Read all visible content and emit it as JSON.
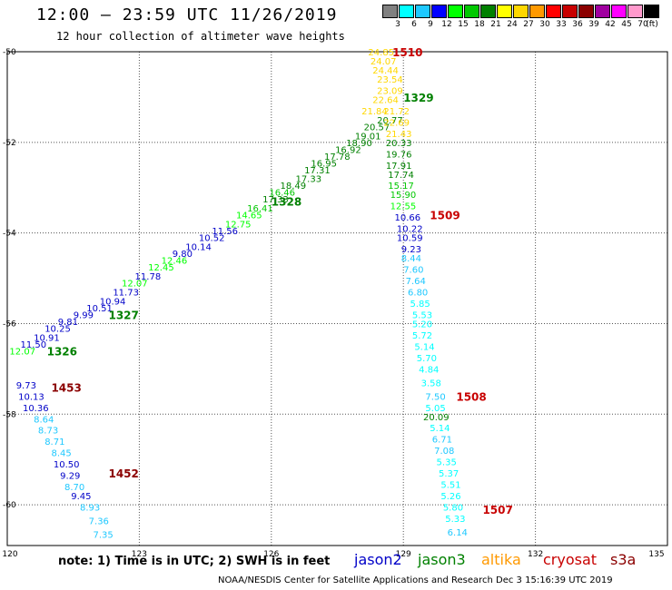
{
  "header": {
    "title": "12:00 – 23:59 UTC 11/26/2019",
    "subtitle": "12 hour collection of altimeter wave heights"
  },
  "legend": {
    "unit": "(ft)",
    "bins": [
      {
        "label": "3",
        "color": "#808080"
      },
      {
        "label": "6",
        "color": "#00ffff"
      },
      {
        "label": "9",
        "color": "#1ec8ff"
      },
      {
        "label": "12",
        "color": "#0000ff"
      },
      {
        "label": "15",
        "color": "#00ff00"
      },
      {
        "label": "18",
        "color": "#00c800"
      },
      {
        "label": "21",
        "color": "#008000"
      },
      {
        "label": "24",
        "color": "#ffff00"
      },
      {
        "label": "27",
        "color": "#ffd700"
      },
      {
        "label": "30",
        "color": "#ff9900"
      },
      {
        "label": "33",
        "color": "#ff0000"
      },
      {
        "label": "36",
        "color": "#c80000"
      },
      {
        "label": "39",
        "color": "#8b0000"
      },
      {
        "label": "42",
        "color": "#a000a0"
      },
      {
        "label": "45",
        "color": "#ff00ff"
      },
      {
        "label": "70",
        "color": "#ff99cc"
      },
      {
        "label": "",
        "color": "#000000"
      }
    ]
  },
  "axes": {
    "lon_labels": [
      "120",
      "123",
      "126",
      "129",
      "132",
      "135"
    ],
    "lat_labels": [
      "-50",
      "-52",
      "-54",
      "-56",
      "-58",
      "-60"
    ]
  },
  "colors": {
    "jason2": "#0000c8",
    "jason3": "#008000",
    "altika": "#ff9900",
    "cryosat": "#c80000",
    "s3a": "#8b0000"
  },
  "tracks": [
    {
      "id": "1326",
      "color": "#008000",
      "lon": 120.9,
      "lat": -56.6
    },
    {
      "id": "1327",
      "color": "#008000",
      "lon": 122.3,
      "lat": -55.8
    },
    {
      "id": "1328",
      "color": "#008000",
      "lon": 126.0,
      "lat": -53.3
    },
    {
      "id": "1329",
      "color": "#008000",
      "lon": 129.0,
      "lat": -51.0
    },
    {
      "id": "1453",
      "color": "#8b0000",
      "lon": 121.0,
      "lat": -57.4
    },
    {
      "id": "1452",
      "color": "#8b0000",
      "lon": 122.3,
      "lat": -59.3
    },
    {
      "id": "1510",
      "color": "#c80000",
      "lon": 128.75,
      "lat": -50.0
    },
    {
      "id": "1509",
      "color": "#c80000",
      "lon": 129.6,
      "lat": -53.6
    },
    {
      "id": "1508",
      "color": "#c80000",
      "lon": 130.2,
      "lat": -57.6
    },
    {
      "id": "1507",
      "color": "#c80000",
      "lon": 130.8,
      "lat": -60.1
    }
  ],
  "observations": [
    {
      "v": "12.07",
      "c": "#00ff00",
      "lon": 120.05,
      "lat": -56.6
    },
    {
      "v": "11.50",
      "c": "#0000c8",
      "lon": 120.3,
      "lat": -56.45
    },
    {
      "v": "10.91",
      "c": "#0000c8",
      "lon": 120.6,
      "lat": -56.3
    },
    {
      "v": "10.25",
      "c": "#0000c8",
      "lon": 120.85,
      "lat": -56.1
    },
    {
      "v": "9.81",
      "c": "#0000c8",
      "lon": 121.15,
      "lat": -55.95
    },
    {
      "v": "9.99",
      "c": "#0000c8",
      "lon": 121.5,
      "lat": -55.8
    },
    {
      "v": "10.51",
      "c": "#0000c8",
      "lon": 121.8,
      "lat": -55.65
    },
    {
      "v": "10.94",
      "c": "#0000c8",
      "lon": 122.1,
      "lat": -55.5
    },
    {
      "v": "11.73",
      "c": "#0000c8",
      "lon": 122.4,
      "lat": -55.3
    },
    {
      "v": "12.07",
      "c": "#00ff00",
      "lon": 122.6,
      "lat": -55.1
    },
    {
      "v": "11.78",
      "c": "#0000c8",
      "lon": 122.9,
      "lat": -54.95
    },
    {
      "v": "12.45",
      "c": "#00ff00",
      "lon": 123.2,
      "lat": -54.75
    },
    {
      "v": "12.46",
      "c": "#00ff00",
      "lon": 123.5,
      "lat": -54.6
    },
    {
      "v": "9.80",
      "c": "#0000c8",
      "lon": 123.75,
      "lat": -54.45
    },
    {
      "v": "10.14",
      "c": "#0000c8",
      "lon": 124.05,
      "lat": -54.3
    },
    {
      "v": "10.52",
      "c": "#0000c8",
      "lon": 124.35,
      "lat": -54.1
    },
    {
      "v": "11.56",
      "c": "#0000c8",
      "lon": 124.65,
      "lat": -53.95
    },
    {
      "v": "12.75",
      "c": "#00ff00",
      "lon": 124.95,
      "lat": -53.8
    },
    {
      "v": "14.65",
      "c": "#00ff00",
      "lon": 125.2,
      "lat": -53.6
    },
    {
      "v": "16.41",
      "c": "#00c800",
      "lon": 125.45,
      "lat": -53.45
    },
    {
      "v": "17.33",
      "c": "#008000",
      "lon": 125.8,
      "lat": -53.25
    },
    {
      "v": "16.46",
      "c": "#00c800",
      "lon": 125.95,
      "lat": -53.1
    },
    {
      "v": "18.49",
      "c": "#008000",
      "lon": 126.2,
      "lat": -52.95
    },
    {
      "v": "17.33",
      "c": "#008000",
      "lon": 126.55,
      "lat": -52.8
    },
    {
      "v": "17.31",
      "c": "#008000",
      "lon": 126.75,
      "lat": -52.6
    },
    {
      "v": "16.95",
      "c": "#008000",
      "lon": 126.9,
      "lat": -52.45
    },
    {
      "v": "17.78",
      "c": "#008000",
      "lon": 127.2,
      "lat": -52.3
    },
    {
      "v": "16.92",
      "c": "#008000",
      "lon": 127.45,
      "lat": -52.15
    },
    {
      "v": "18.90",
      "c": "#008000",
      "lon": 127.7,
      "lat": -52.0
    },
    {
      "v": "19.01",
      "c": "#008000",
      "lon": 127.9,
      "lat": -51.85
    },
    {
      "v": "20.57",
      "c": "#008000",
      "lon": 128.1,
      "lat": -51.65
    },
    {
      "v": "20.77",
      "c": "#008000",
      "lon": 128.4,
      "lat": -51.5
    },
    {
      "v": "24.85",
      "c": "#ffd700",
      "lon": 128.2,
      "lat": -50.0
    },
    {
      "v": "24.07",
      "c": "#ffd700",
      "lon": 128.25,
      "lat": -50.2
    },
    {
      "v": "24.44",
      "c": "#ffd700",
      "lon": 128.3,
      "lat": -50.4
    },
    {
      "v": "23.54",
      "c": "#ffd700",
      "lon": 128.4,
      "lat": -50.6
    },
    {
      "v": "23.09",
      "c": "#ffd700",
      "lon": 128.4,
      "lat": -50.85
    },
    {
      "v": "22.64",
      "c": "#ffd700",
      "lon": 128.3,
      "lat": -51.05
    },
    {
      "v": "21.84",
      "c": "#ffd700",
      "lon": 128.05,
      "lat": -51.3
    },
    {
      "v": "21.72",
      "c": "#ffd700",
      "lon": 128.55,
      "lat": -51.3
    },
    {
      "v": "22.69",
      "c": "#ffd700",
      "lon": 128.55,
      "lat": -51.55
    },
    {
      "v": "21.43",
      "c": "#ffd700",
      "lon": 128.6,
      "lat": -51.8
    },
    {
      "v": "20.33",
      "c": "#008000",
      "lon": 128.6,
      "lat": -52.0
    },
    {
      "v": "19.76",
      "c": "#008000",
      "lon": 128.6,
      "lat": -52.25
    },
    {
      "v": "17.91",
      "c": "#008000",
      "lon": 128.6,
      "lat": -52.5
    },
    {
      "v": "17.74",
      "c": "#008000",
      "lon": 128.65,
      "lat": -52.7
    },
    {
      "v": "15.17",
      "c": "#00c800",
      "lon": 128.65,
      "lat": -52.95
    },
    {
      "v": "15.90",
      "c": "#00c800",
      "lon": 128.7,
      "lat": -53.15
    },
    {
      "v": "12.55",
      "c": "#00ff00",
      "lon": 128.7,
      "lat": -53.4
    },
    {
      "v": "10.66",
      "c": "#0000c8",
      "lon": 128.8,
      "lat": -53.65
    },
    {
      "v": "10.22",
      "c": "#0000c8",
      "lon": 128.85,
      "lat": -53.9
    },
    {
      "v": "10.59",
      "c": "#0000c8",
      "lon": 128.85,
      "lat": -54.1
    },
    {
      "v": "9.23",
      "c": "#0000c8",
      "lon": 128.95,
      "lat": -54.35
    },
    {
      "v": "8.44",
      "c": "#1ec8ff",
      "lon": 128.95,
      "lat": -54.55
    },
    {
      "v": "7.60",
      "c": "#1ec8ff",
      "lon": 129.0,
      "lat": -54.8
    },
    {
      "v": "7.64",
      "c": "#1ec8ff",
      "lon": 129.05,
      "lat": -55.05
    },
    {
      "v": "6.80",
      "c": "#1ec8ff",
      "lon": 129.1,
      "lat": -55.3
    },
    {
      "v": "5.85",
      "c": "#00ffff",
      "lon": 129.15,
      "lat": -55.55
    },
    {
      "v": "5.53",
      "c": "#00ffff",
      "lon": 129.2,
      "lat": -55.8
    },
    {
      "v": "5.20",
      "c": "#00ffff",
      "lon": 129.2,
      "lat": -56.0
    },
    {
      "v": "5.72",
      "c": "#00ffff",
      "lon": 129.2,
      "lat": -56.25
    },
    {
      "v": "5.14",
      "c": "#00ffff",
      "lon": 129.25,
      "lat": -56.5
    },
    {
      "v": "5.70",
      "c": "#00ffff",
      "lon": 129.3,
      "lat": -56.75
    },
    {
      "v": "4.84",
      "c": "#00ffff",
      "lon": 129.35,
      "lat": -57.0
    },
    {
      "v": "3.58",
      "c": "#00ffff",
      "lon": 129.4,
      "lat": -57.3
    },
    {
      "v": "7.50",
      "c": "#1ec8ff",
      "lon": 129.5,
      "lat": -57.6
    },
    {
      "v": "5.05",
      "c": "#00ffff",
      "lon": 129.5,
      "lat": -57.85
    },
    {
      "v": "20.09",
      "c": "#008000",
      "lon": 129.45,
      "lat": -58.05
    },
    {
      "v": "5.14",
      "c": "#00ffff",
      "lon": 129.6,
      "lat": -58.3
    },
    {
      "v": "6.71",
      "c": "#1ec8ff",
      "lon": 129.65,
      "lat": -58.55
    },
    {
      "v": "7.08",
      "c": "#1ec8ff",
      "lon": 129.7,
      "lat": -58.8
    },
    {
      "v": "5.35",
      "c": "#00ffff",
      "lon": 129.75,
      "lat": -59.05
    },
    {
      "v": "5.37",
      "c": "#00ffff",
      "lon": 129.8,
      "lat": -59.3
    },
    {
      "v": "5.51",
      "c": "#00ffff",
      "lon": 129.85,
      "lat": -59.55
    },
    {
      "v": "5.26",
      "c": "#00ffff",
      "lon": 129.85,
      "lat": -59.8
    },
    {
      "v": "5.80",
      "c": "#00ffff",
      "lon": 129.9,
      "lat": -60.05
    },
    {
      "v": "5.33",
      "c": "#00ffff",
      "lon": 129.95,
      "lat": -60.3
    },
    {
      "v": "6.14",
      "c": "#1ec8ff",
      "lon": 130.0,
      "lat": -60.6
    },
    {
      "v": "9.73",
      "c": "#0000c8",
      "lon": 120.2,
      "lat": -57.35
    },
    {
      "v": "10.13",
      "c": "#0000c8",
      "lon": 120.25,
      "lat": -57.6
    },
    {
      "v": "10.36",
      "c": "#0000c8",
      "lon": 120.35,
      "lat": -57.85
    },
    {
      "v": "8.64",
      "c": "#1ec8ff",
      "lon": 120.6,
      "lat": -58.1
    },
    {
      "v": "8.73",
      "c": "#1ec8ff",
      "lon": 120.7,
      "lat": -58.35
    },
    {
      "v": "8.71",
      "c": "#1ec8ff",
      "lon": 120.85,
      "lat": -58.6
    },
    {
      "v": "8.45",
      "c": "#1ec8ff",
      "lon": 121.0,
      "lat": -58.85
    },
    {
      "v": "10.50",
      "c": "#0000c8",
      "lon": 121.05,
      "lat": -59.1
    },
    {
      "v": "9.29",
      "c": "#0000c8",
      "lon": 121.2,
      "lat": -59.35
    },
    {
      "v": "8.70",
      "c": "#1ec8ff",
      "lon": 121.3,
      "lat": -59.6
    },
    {
      "v": "9.45",
      "c": "#0000c8",
      "lon": 121.45,
      "lat": -59.8
    },
    {
      "v": "8.93",
      "c": "#1ec8ff",
      "lon": 121.65,
      "lat": -60.05
    },
    {
      "v": "7.36",
      "c": "#1ec8ff",
      "lon": 121.85,
      "lat": -60.35
    },
    {
      "v": "7.35",
      "c": "#1ec8ff",
      "lon": 121.95,
      "lat": -60.65
    }
  ],
  "note": "note:  1) Time is in UTC;  2) SWH is in feet",
  "satellites": [
    {
      "name": "jason2",
      "color": "#0000c8"
    },
    {
      "name": "jason3",
      "color": "#008000"
    },
    {
      "name": "altika",
      "color": "#ff9900"
    },
    {
      "name": "cryosat",
      "color": "#c80000"
    },
    {
      "name": "s3a",
      "color": "#8b0000"
    }
  ],
  "footer": "NOAA/NESDIS Center for Satellite Applications and Research    Dec  3 15:16:39 UTC 2019"
}
